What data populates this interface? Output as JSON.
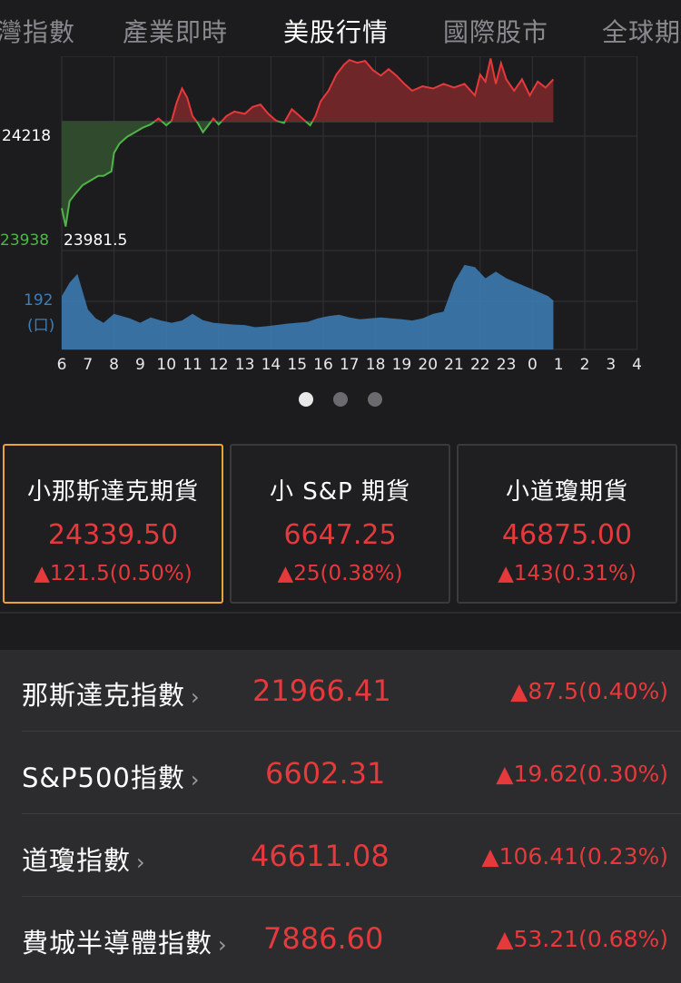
{
  "tabs": [
    {
      "label": "灣指數",
      "active": false
    },
    {
      "label": "產業即時",
      "active": false
    },
    {
      "label": "美股行情",
      "active": true
    },
    {
      "label": "國際股市",
      "active": false
    },
    {
      "label": "全球期",
      "active": false
    }
  ],
  "chart": {
    "ref_price_label": "24218",
    "low_label": "23938",
    "low_value_label": "23981.5",
    "volume_max_label": "192",
    "volume_unit_label": "(口)",
    "x_ticks": [
      "6",
      "7",
      "8",
      "9",
      "10",
      "11",
      "12",
      "13",
      "14",
      "15",
      "16",
      "17",
      "18",
      "19",
      "20",
      "21",
      "22",
      "23",
      "0",
      "1",
      "2",
      "3",
      "4"
    ],
    "colors": {
      "up": "#e5393c",
      "down": "#4fb548",
      "volume": "#3d7fb8"
    }
  },
  "chart_data": {
    "type": "line",
    "title": "",
    "x_unit": "hour",
    "reference": 24218,
    "ylim": [
      23938,
      24360
    ],
    "price_points": [
      [
        6.0,
        24030
      ],
      [
        6.15,
        23990
      ],
      [
        6.3,
        24045
      ],
      [
        6.5,
        24060
      ],
      [
        6.8,
        24080
      ],
      [
        7.1,
        24090
      ],
      [
        7.4,
        24100
      ],
      [
        7.6,
        24100
      ],
      [
        7.9,
        24110
      ],
      [
        8.0,
        24150
      ],
      [
        8.2,
        24170
      ],
      [
        8.5,
        24185
      ],
      [
        8.8,
        24195
      ],
      [
        9.1,
        24205
      ],
      [
        9.4,
        24212
      ],
      [
        9.7,
        24225
      ],
      [
        10.0,
        24210
      ],
      [
        10.2,
        24220
      ],
      [
        10.4,
        24260
      ],
      [
        10.6,
        24290
      ],
      [
        10.8,
        24270
      ],
      [
        11.0,
        24230
      ],
      [
        11.2,
        24215
      ],
      [
        11.4,
        24195
      ],
      [
        11.6,
        24210
      ],
      [
        11.8,
        24225
      ],
      [
        12.0,
        24212
      ],
      [
        12.3,
        24230
      ],
      [
        12.6,
        24240
      ],
      [
        13.0,
        24235
      ],
      [
        13.3,
        24250
      ],
      [
        13.6,
        24255
      ],
      [
        13.9,
        24235
      ],
      [
        14.2,
        24220
      ],
      [
        14.5,
        24215
      ],
      [
        14.8,
        24245
      ],
      [
        15.1,
        24230
      ],
      [
        15.3,
        24220
      ],
      [
        15.5,
        24210
      ],
      [
        15.7,
        24230
      ],
      [
        15.9,
        24262
      ],
      [
        16.2,
        24285
      ],
      [
        16.5,
        24320
      ],
      [
        16.8,
        24342
      ],
      [
        17.0,
        24352
      ],
      [
        17.3,
        24346
      ],
      [
        17.6,
        24350
      ],
      [
        17.9,
        24330
      ],
      [
        18.2,
        24318
      ],
      [
        18.5,
        24332
      ],
      [
        18.8,
        24318
      ],
      [
        19.1,
        24300
      ],
      [
        19.4,
        24285
      ],
      [
        19.8,
        24295
      ],
      [
        20.2,
        24290
      ],
      [
        20.6,
        24300
      ],
      [
        21.0,
        24292
      ],
      [
        21.4,
        24300
      ],
      [
        21.8,
        24275
      ],
      [
        22.0,
        24320
      ],
      [
        22.2,
        24305
      ],
      [
        22.4,
        24355
      ],
      [
        22.6,
        24300
      ],
      [
        22.8,
        24345
      ],
      [
        23.0,
        24310
      ],
      [
        23.3,
        24285
      ],
      [
        23.6,
        24310
      ],
      [
        23.9,
        24275
      ],
      [
        24.2,
        24305
      ],
      [
        24.5,
        24292
      ],
      [
        24.8,
        24310
      ]
    ],
    "volume_points": [
      [
        6.0,
        120
      ],
      [
        6.3,
        150
      ],
      [
        6.6,
        170
      ],
      [
        7.0,
        90
      ],
      [
        7.3,
        70
      ],
      [
        7.6,
        60
      ],
      [
        8.0,
        80
      ],
      [
        8.3,
        75
      ],
      [
        8.6,
        70
      ],
      [
        9.0,
        60
      ],
      [
        9.4,
        72
      ],
      [
        9.8,
        65
      ],
      [
        10.2,
        60
      ],
      [
        10.6,
        65
      ],
      [
        11.0,
        80
      ],
      [
        11.4,
        66
      ],
      [
        11.8,
        60
      ],
      [
        12.2,
        58
      ],
      [
        12.6,
        56
      ],
      [
        13.0,
        55
      ],
      [
        13.4,
        50
      ],
      [
        13.8,
        52
      ],
      [
        14.2,
        55
      ],
      [
        14.6,
        58
      ],
      [
        15.0,
        60
      ],
      [
        15.4,
        62
      ],
      [
        15.8,
        70
      ],
      [
        16.2,
        75
      ],
      [
        16.6,
        78
      ],
      [
        17.0,
        72
      ],
      [
        17.4,
        68
      ],
      [
        17.8,
        70
      ],
      [
        18.2,
        72
      ],
      [
        18.6,
        70
      ],
      [
        19.0,
        68
      ],
      [
        19.4,
        65
      ],
      [
        19.8,
        70
      ],
      [
        20.2,
        80
      ],
      [
        20.6,
        85
      ],
      [
        21.0,
        150
      ],
      [
        21.4,
        190
      ],
      [
        21.8,
        185
      ],
      [
        22.2,
        160
      ],
      [
        22.6,
        175
      ],
      [
        23.0,
        160
      ],
      [
        23.4,
        150
      ],
      [
        23.8,
        140
      ],
      [
        24.2,
        130
      ],
      [
        24.6,
        120
      ],
      [
        24.8,
        110
      ]
    ],
    "ymax_volume": 200,
    "x_range": [
      6,
      28
    ]
  },
  "pager": {
    "count": 3,
    "active": 0
  },
  "futures": [
    {
      "name": "小那斯達克期貨",
      "price": "24339.50",
      "change": "▲121.5(0.50%)",
      "selected": true
    },
    {
      "name": "小 S&P 期貨",
      "price": "6647.25",
      "change": "▲25(0.38%)",
      "selected": false
    },
    {
      "name": "小道瓊期貨",
      "price": "46875.00",
      "change": "▲143(0.31%)",
      "selected": false
    }
  ],
  "indices": [
    {
      "name": "那斯達克指數",
      "chevron": "›",
      "value": "21966.41",
      "change": "▲87.5(0.40%)"
    },
    {
      "name": "S&P500指數",
      "chevron": "›",
      "value": "6602.31",
      "change": "▲19.62(0.30%)"
    },
    {
      "name": "道瓊指數",
      "chevron": "›",
      "value": "46611.08",
      "change": "▲106.41(0.23%)"
    },
    {
      "name": "費城半導體指數",
      "chevron": "›",
      "value": "7886.60",
      "change": "▲53.21(0.68%)"
    }
  ]
}
